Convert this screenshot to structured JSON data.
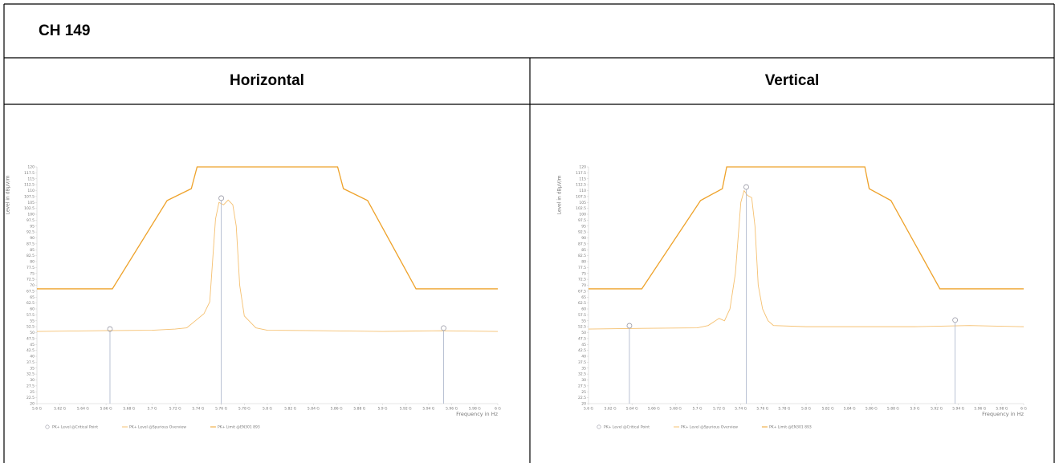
{
  "header": {
    "title": "CH 149"
  },
  "columns": [
    "Horizontal",
    "Vertical"
  ],
  "charts": [
    {
      "type": "line",
      "y_label": "Level in dBμV/m",
      "x_label": "Frequency in Hz",
      "xlim": [
        5.6,
        6.0
      ],
      "ylim": [
        20,
        120
      ],
      "xticks": [
        {
          "value": 5.6,
          "label": "5.6 G"
        },
        {
          "value": 5.62,
          "label": "5.62 G"
        },
        {
          "value": 5.64,
          "label": "5.64 G"
        },
        {
          "value": 5.66,
          "label": "5.66 G"
        },
        {
          "value": 5.68,
          "label": "5.68 G"
        },
        {
          "value": 5.7,
          "label": "5.7 G"
        },
        {
          "value": 5.72,
          "label": "5.72 G"
        },
        {
          "value": 5.74,
          "label": "5.74 G"
        },
        {
          "value": 5.76,
          "label": "5.76 G"
        },
        {
          "value": 5.78,
          "label": "5.78 G"
        },
        {
          "value": 5.8,
          "label": "5.8 G"
        },
        {
          "value": 5.82,
          "label": "5.82 G"
        },
        {
          "value": 5.84,
          "label": "5.84 G"
        },
        {
          "value": 5.86,
          "label": "5.86 G"
        },
        {
          "value": 5.88,
          "label": "5.88 G"
        },
        {
          "value": 5.9,
          "label": "5.9 G"
        },
        {
          "value": 5.92,
          "label": "5.92 G"
        },
        {
          "value": 5.94,
          "label": "5.94 G"
        },
        {
          "value": 5.96,
          "label": "5.96 G"
        },
        {
          "value": 5.98,
          "label": "5.98 G"
        },
        {
          "value": 6.0,
          "label": "6 G"
        }
      ],
      "yticks": [
        20,
        22.5,
        25,
        27.5,
        30,
        32.5,
        35,
        37.5,
        40,
        42.5,
        45,
        47.5,
        50,
        52.5,
        55,
        57.5,
        60,
        62.5,
        65,
        67.5,
        70,
        72.5,
        75,
        77.5,
        80,
        82.5,
        85,
        87.5,
        90,
        92.5,
        95,
        97.5,
        100,
        102.5,
        105,
        107.5,
        110,
        112.5,
        115,
        117.5,
        120
      ],
      "series": [
        {
          "name": "PK+ Level @Critical Point",
          "kind": "marker",
          "color": "#9a9aa6",
          "x": [
            5.6634,
            5.76,
            5.953
          ],
          "values": [
            51.5,
            106.8,
            51.9
          ]
        },
        {
          "name": "PK+ Level @Spurious Overview",
          "kind": "trace",
          "color": "#f5c070",
          "x": [
            5.6,
            5.65,
            5.7,
            5.72,
            5.73,
            5.74,
            5.745,
            5.75,
            5.755,
            5.758,
            5.762,
            5.766,
            5.77,
            5.773,
            5.776,
            5.78,
            5.79,
            5.8,
            5.85,
            5.9,
            5.95,
            6.0
          ],
          "values": [
            50.5,
            50.8,
            51,
            51.5,
            52,
            56,
            58,
            63,
            98,
            105,
            104,
            106,
            104,
            95,
            70,
            57,
            52,
            51,
            50.8,
            50.5,
            50.8,
            50.5
          ]
        },
        {
          "name": "PK+ Limit @EN301 893",
          "kind": "limit",
          "color": "#eea22a",
          "x": [
            5.6,
            5.6655,
            5.713,
            5.734,
            5.739,
            5.861,
            5.866,
            5.887,
            5.929,
            6.0
          ],
          "values": [
            68.5,
            68.5,
            105.8,
            110.8,
            120,
            120,
            110.8,
            105.8,
            68.5,
            68.5
          ]
        }
      ]
    },
    {
      "type": "line",
      "y_label": "Level in dBμV/m",
      "x_label": "Frequency in Hz",
      "xlim": [
        5.6,
        6.0
      ],
      "ylim": [
        20,
        120
      ],
      "xticks": [
        {
          "value": 5.6,
          "label": "5.6 G"
        },
        {
          "value": 5.62,
          "label": "5.62 G"
        },
        {
          "value": 5.64,
          "label": "5.64 G"
        },
        {
          "value": 5.66,
          "label": "5.66 G"
        },
        {
          "value": 5.68,
          "label": "5.68 G"
        },
        {
          "value": 5.7,
          "label": "5.7 G"
        },
        {
          "value": 5.72,
          "label": "5.72 G"
        },
        {
          "value": 5.74,
          "label": "5.74 G"
        },
        {
          "value": 5.76,
          "label": "5.76 G"
        },
        {
          "value": 5.78,
          "label": "5.78 G"
        },
        {
          "value": 5.8,
          "label": "5.8 G"
        },
        {
          "value": 5.82,
          "label": "5.82 G"
        },
        {
          "value": 5.84,
          "label": "5.84 G"
        },
        {
          "value": 5.86,
          "label": "5.86 G"
        },
        {
          "value": 5.88,
          "label": "5.88 G"
        },
        {
          "value": 5.9,
          "label": "5.9 G"
        },
        {
          "value": 5.92,
          "label": "5.92 G"
        },
        {
          "value": 5.94,
          "label": "5.94 G"
        },
        {
          "value": 5.96,
          "label": "5.96 G"
        },
        {
          "value": 5.98,
          "label": "5.98 G"
        },
        {
          "value": 6.0,
          "label": "6 G"
        }
      ],
      "yticks": [
        20,
        22.5,
        25,
        27.5,
        30,
        32.5,
        35,
        37.5,
        40,
        42.5,
        45,
        47.5,
        50,
        52.5,
        55,
        57.5,
        60,
        62.5,
        65,
        67.5,
        70,
        72.5,
        75,
        77.5,
        80,
        82.5,
        85,
        87.5,
        90,
        92.5,
        95,
        97.5,
        100,
        102.5,
        105,
        107.5,
        110,
        112.5,
        115,
        117.5,
        120
      ],
      "series": [
        {
          "name": "PK+ Level @Critical Point",
          "kind": "marker",
          "color": "#9a9aa6",
          "x": [
            5.6376,
            5.745,
            5.937
          ],
          "values": [
            52.9,
            111.5,
            55.3
          ]
        },
        {
          "name": "PK+ Level @Spurious Overview",
          "kind": "trace",
          "color": "#f5c070",
          "x": [
            5.6,
            5.65,
            5.7,
            5.71,
            5.72,
            5.725,
            5.73,
            5.735,
            5.74,
            5.743,
            5.746,
            5.75,
            5.753,
            5.756,
            5.76,
            5.765,
            5.77,
            5.8,
            5.9,
            5.95,
            6.0
          ],
          "values": [
            51.5,
            51.8,
            52,
            53,
            56,
            55,
            60,
            75,
            105,
            110,
            108,
            107,
            95,
            70,
            60,
            55,
            53,
            52.5,
            52.5,
            53,
            52.5
          ]
        },
        {
          "name": "PK+ Limit @EN301 893",
          "kind": "limit",
          "color": "#eea22a",
          "x": [
            5.6,
            5.649,
            5.703,
            5.723,
            5.727,
            5.854,
            5.858,
            5.878,
            5.923,
            6.0
          ],
          "values": [
            68.5,
            68.5,
            105.8,
            110.8,
            120,
            120,
            110.8,
            105.8,
            68.5,
            68.5
          ]
        }
      ]
    }
  ]
}
